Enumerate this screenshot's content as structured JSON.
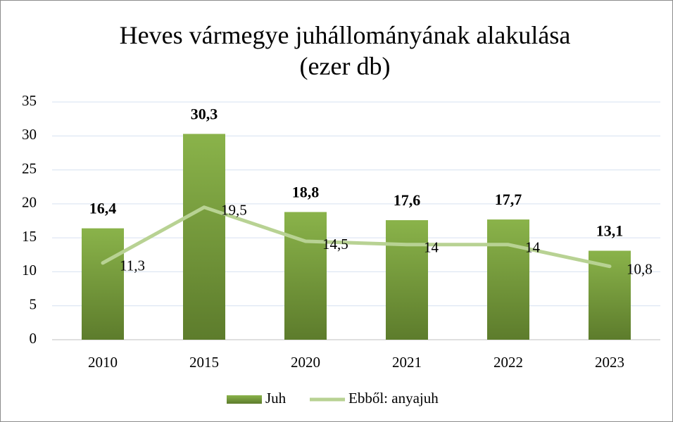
{
  "chart_data": {
    "type": "bar-line",
    "title": "Heves vármegye juhállományának alakulása (ezer db)",
    "categories": [
      "2010",
      "2015",
      "2020",
      "2021",
      "2022",
      "2023"
    ],
    "series": [
      {
        "name": "Juh",
        "type": "bar",
        "color": "#8ab34a",
        "values": [
          16.4,
          30.3,
          18.8,
          17.6,
          17.7,
          13.1
        ],
        "value_labels": [
          "16,4",
          "30,3",
          "18,8",
          "17,6",
          "17,7",
          "13,1"
        ]
      },
      {
        "name": "Ebből: anyajuh",
        "type": "line",
        "color": "#b8d293",
        "values": [
          11.3,
          19.5,
          14.5,
          14,
          14,
          10.8
        ],
        "value_labels": [
          "11,3",
          "19,5",
          "14,5",
          "14",
          "14",
          "10,8"
        ]
      }
    ],
    "ylim": [
      0,
      35
    ],
    "yticks": [
      0,
      5,
      10,
      15,
      20,
      25,
      30,
      35
    ],
    "grid": true,
    "legend": "bottom"
  }
}
